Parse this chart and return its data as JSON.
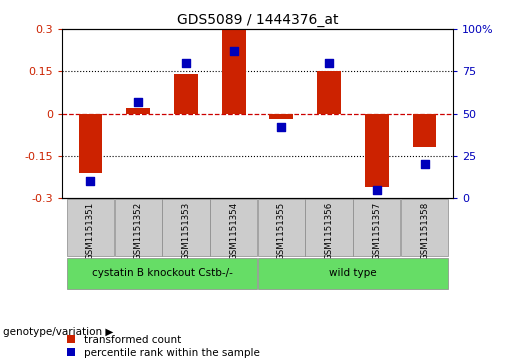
{
  "title": "GDS5089 / 1444376_at",
  "samples": [
    "GSM1151351",
    "GSM1151352",
    "GSM1151353",
    "GSM1151354",
    "GSM1151355",
    "GSM1151356",
    "GSM1151357",
    "GSM1151358"
  ],
  "transformed_count": [
    -0.21,
    0.02,
    0.14,
    0.295,
    -0.02,
    0.15,
    -0.26,
    -0.12
  ],
  "percentile_rank": [
    10,
    57,
    80,
    87,
    42,
    80,
    5,
    20
  ],
  "group1_label": "cystatin B knockout Cstb-/-",
  "group2_label": "wild type",
  "group_annotation": "genotype/variation",
  "ylim": [
    -0.3,
    0.3
  ],
  "y2lim": [
    0,
    100
  ],
  "yticks": [
    -0.3,
    -0.15,
    0,
    0.15,
    0.3
  ],
  "y2ticks": [
    0,
    25,
    50,
    75,
    100
  ],
  "bar_color": "#cc2200",
  "dot_color": "#0000bb",
  "hline_color": "#cc0000",
  "legend_bar_label": "transformed count",
  "legend_dot_label": "percentile rank within the sample",
  "bar_width": 0.5,
  "dot_size": 35,
  "group_box_color": "#66dd66",
  "sample_box_color": "#cccccc",
  "title_fontsize": 10
}
